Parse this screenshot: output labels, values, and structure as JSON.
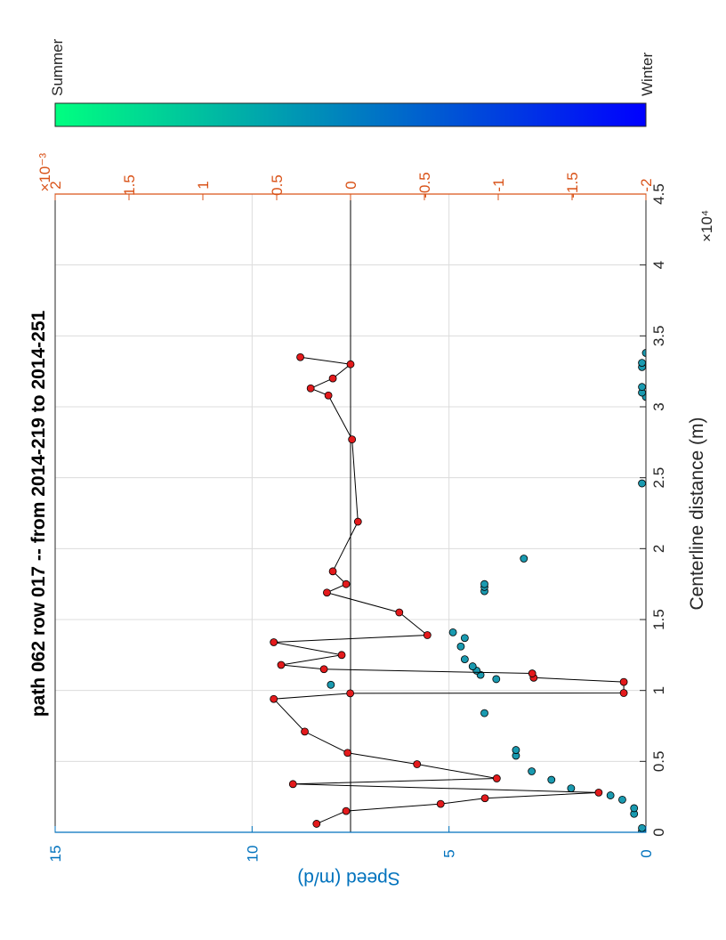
{
  "chart_data": {
    "type": "scatter",
    "title": "path 062 row 017 -- from 2014-219 to 2014-251",
    "xlabel": "Centerline distance (m)",
    "x_exponent": "×10⁴",
    "xlim": [
      0,
      45000
    ],
    "x_ticks": [
      0,
      5000,
      10000,
      15000,
      20000,
      25000,
      30000,
      35000,
      40000,
      45000
    ],
    "x_tick_labels": [
      "0",
      "0.5",
      "1",
      "1.5",
      "2",
      "2.5",
      "3",
      "3.5",
      "4",
      "4.5"
    ],
    "ylabel": "Speed (m/d)",
    "ylim": [
      0,
      15
    ],
    "y_ticks": [
      0,
      5,
      10,
      15
    ],
    "y_tick_labels": [
      "0",
      "5",
      "10",
      "15"
    ],
    "y2_exponent": "×10⁻³",
    "y2lim": [
      -0.002,
      0.002
    ],
    "y2_ticks": [
      -0.002,
      -0.0015,
      -0.001,
      -0.0005,
      0,
      0.0005,
      0.001,
      0.0015,
      0.002
    ],
    "y2_tick_labels": [
      "-2",
      "-1.5",
      "-1",
      "-0.5",
      "0",
      "0.5",
      "1",
      "1.5",
      "2"
    ],
    "grid": true,
    "colorbar": {
      "low_label": "Summer",
      "high_label": "Winter",
      "low_color": "#00ff80",
      "high_color": "#0000ff"
    },
    "colors": {
      "speed_axis": "#0072bd",
      "y2_axis": "#d95319",
      "speed_marker": "#1a9ab0",
      "y2_marker": "#e31a1c"
    },
    "series": [
      {
        "axis": "left",
        "mode": "markers",
        "points": [
          [
            100,
            0.1
          ],
          [
            300,
            0.1
          ],
          [
            1300,
            0.3
          ],
          [
            1700,
            0.3
          ],
          [
            2300,
            0.6
          ],
          [
            2600,
            0.9
          ],
          [
            3100,
            1.9
          ],
          [
            3700,
            2.4
          ],
          [
            4300,
            2.9
          ],
          [
            5400,
            3.3
          ],
          [
            5800,
            3.3
          ],
          [
            8400,
            4.1
          ],
          [
            10400,
            8.0
          ],
          [
            10800,
            3.8
          ],
          [
            11100,
            4.2
          ],
          [
            11400,
            4.3
          ],
          [
            11700,
            4.4
          ],
          [
            12200,
            4.6
          ],
          [
            13100,
            4.7
          ],
          [
            13700,
            4.6
          ],
          [
            14100,
            4.9
          ],
          [
            17000,
            4.1
          ],
          [
            17300,
            4.1
          ],
          [
            17500,
            4.1
          ],
          [
            19300,
            3.1
          ],
          [
            24600,
            0.1
          ],
          [
            30700,
            0.0
          ],
          [
            31000,
            0.1
          ],
          [
            31400,
            0.1
          ],
          [
            32800,
            0.1
          ],
          [
            33100,
            0.1
          ],
          [
            33800,
            0.0
          ]
        ]
      },
      {
        "axis": "right",
        "mode": "lines+markers",
        "points": [
          [
            600,
            0.00023
          ],
          [
            1500,
            3e-05
          ],
          [
            2000,
            -0.00061
          ],
          [
            2400,
            -0.00091
          ],
          [
            2800,
            -0.00168
          ],
          [
            3400,
            0.00039
          ],
          [
            3800,
            -0.00099
          ],
          [
            4800,
            -0.00045
          ],
          [
            5600,
            2e-05
          ],
          [
            7100,
            0.00031
          ],
          [
            9400,
            0.00052
          ],
          [
            9800,
            2e-06
          ],
          [
            9820,
            -0.00185
          ],
          [
            10600,
            -0.00185
          ],
          [
            10900,
            -0.00124
          ],
          [
            11200,
            -0.00123
          ],
          [
            11500,
            0.00018
          ],
          [
            11800,
            0.00047
          ],
          [
            12500,
            6e-05
          ],
          [
            13400,
            0.00052
          ],
          [
            13900,
            -0.00052
          ],
          [
            15500,
            -0.00033
          ],
          [
            16900,
            0.00016
          ],
          [
            17500,
            3e-05
          ],
          [
            18400,
            0.00012
          ],
          [
            21900,
            -5e-05
          ],
          [
            27700,
            -1e-05
          ],
          [
            30800,
            0.00015
          ],
          [
            31300,
            0.00027
          ],
          [
            32000,
            0.00012
          ],
          [
            33000,
            0.0
          ],
          [
            33500,
            0.00034
          ]
        ]
      }
    ]
  }
}
